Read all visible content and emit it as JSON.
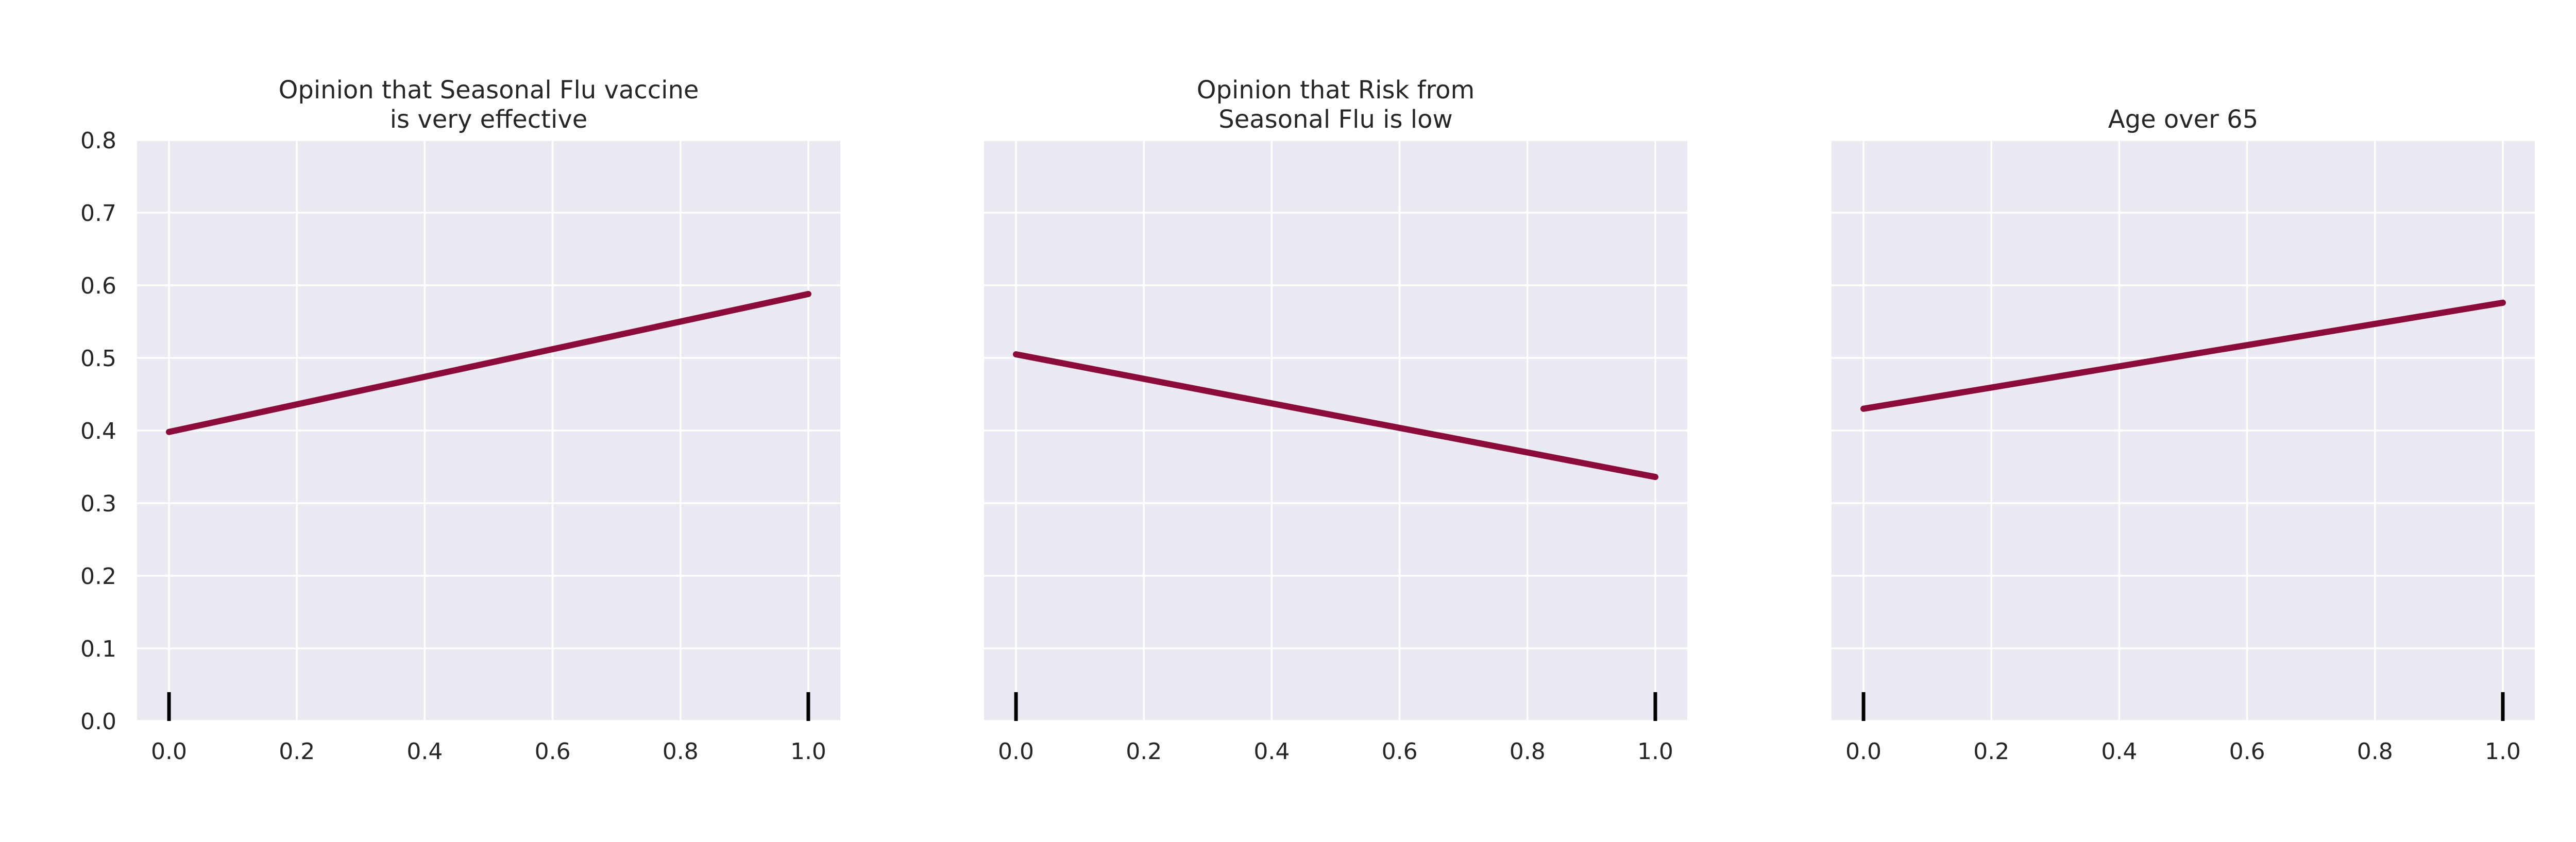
{
  "chart_data": [
    {
      "type": "line",
      "title_lines": [
        "Opinion that Seasonal Flu vaccine",
        "is very effective"
      ],
      "x": [
        0.0,
        1.0
      ],
      "series": [
        {
          "values": [
            0.398,
            0.588
          ]
        }
      ],
      "rug_x": [
        0.0,
        1.0
      ],
      "xlim": [
        -0.05,
        1.05
      ],
      "ylim": [
        0.0,
        0.8
      ],
      "xticks": [
        0.0,
        0.2,
        0.4,
        0.6,
        0.8,
        1.0
      ],
      "xtick_labels": [
        "0.0",
        "0.2",
        "0.4",
        "0.6",
        "0.8",
        "1.0"
      ],
      "yticks": [
        0.0,
        0.1,
        0.2,
        0.3,
        0.4,
        0.5,
        0.6,
        0.7,
        0.8
      ],
      "ytick_labels": [
        "0.0",
        "0.1",
        "0.2",
        "0.3",
        "0.4",
        "0.5",
        "0.6",
        "0.7",
        "0.8"
      ],
      "show_yticklabels": true,
      "grid": true
    },
    {
      "type": "line",
      "title_lines": [
        "Opinion that Risk from",
        "Seasonal Flu is low"
      ],
      "x": [
        0.0,
        1.0
      ],
      "series": [
        {
          "values": [
            0.505,
            0.336
          ]
        }
      ],
      "rug_x": [
        0.0,
        1.0
      ],
      "xlim": [
        -0.05,
        1.05
      ],
      "ylim": [
        0.0,
        0.8
      ],
      "xticks": [
        0.0,
        0.2,
        0.4,
        0.6,
        0.8,
        1.0
      ],
      "xtick_labels": [
        "0.0",
        "0.2",
        "0.4",
        "0.6",
        "0.8",
        "1.0"
      ],
      "yticks": [
        0.0,
        0.1,
        0.2,
        0.3,
        0.4,
        0.5,
        0.6,
        0.7,
        0.8
      ],
      "ytick_labels": [],
      "show_yticklabels": false,
      "grid": true
    },
    {
      "type": "line",
      "title_lines": [
        "Age over 65"
      ],
      "x": [
        0.0,
        1.0
      ],
      "series": [
        {
          "values": [
            0.43,
            0.576
          ]
        }
      ],
      "rug_x": [
        0.0,
        1.0
      ],
      "xlim": [
        -0.05,
        1.05
      ],
      "ylim": [
        0.0,
        0.8
      ],
      "xticks": [
        0.0,
        0.2,
        0.4,
        0.6,
        0.8,
        1.0
      ],
      "xtick_labels": [
        "0.0",
        "0.2",
        "0.4",
        "0.6",
        "0.8",
        "1.0"
      ],
      "yticks": [
        0.0,
        0.1,
        0.2,
        0.3,
        0.4,
        0.5,
        0.6,
        0.7,
        0.8
      ],
      "ytick_labels": [],
      "show_yticklabels": false,
      "grid": true
    }
  ],
  "colors": {
    "line": "#8c0b3a",
    "plot_background": "#eaeaf2",
    "grid": "#ffffff",
    "rug": "#000000",
    "text": "#262626"
  }
}
